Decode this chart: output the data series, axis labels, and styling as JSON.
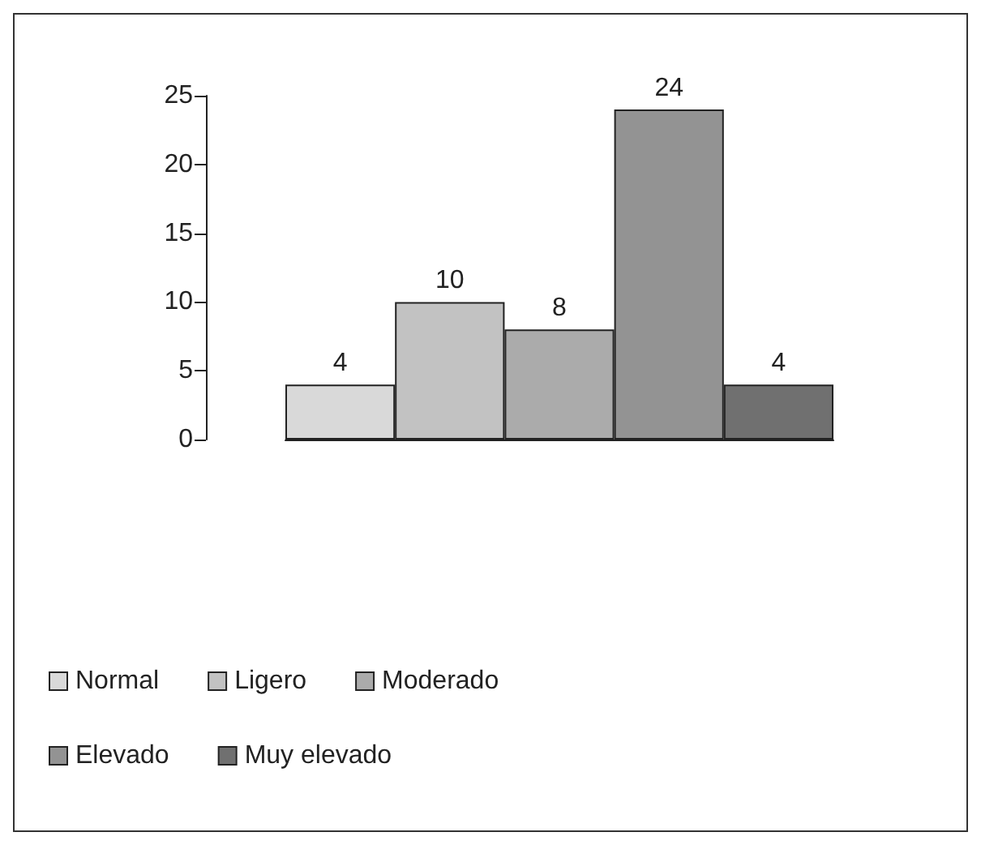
{
  "chart_data": {
    "type": "bar",
    "categories": [
      null,
      null,
      null,
      null,
      null
    ],
    "stacked": true,
    "series": [
      {
        "name": "Normal",
        "color": "#d9d9d9",
        "values": [
          4,
          null,
          null,
          null,
          null
        ]
      },
      {
        "name": "Ligero",
        "color": "#c2c2c2",
        "values": [
          null,
          10,
          null,
          null,
          null
        ]
      },
      {
        "name": "Moderado",
        "color": "#ababab",
        "values": [
          null,
          null,
          8,
          null,
          null
        ]
      },
      {
        "name": "Elevado",
        "color": "#939393",
        "values": [
          null,
          null,
          null,
          24,
          null
        ]
      },
      {
        "name": "Muy elevado",
        "color": "#707070",
        "values": [
          null,
          null,
          null,
          null,
          4
        ]
      }
    ],
    "ylim": [
      0,
      25
    ],
    "yticks": [
      0,
      5,
      10,
      15,
      20,
      25
    ],
    "grid": false,
    "legend": "bottom left",
    "data_labels": true
  }
}
